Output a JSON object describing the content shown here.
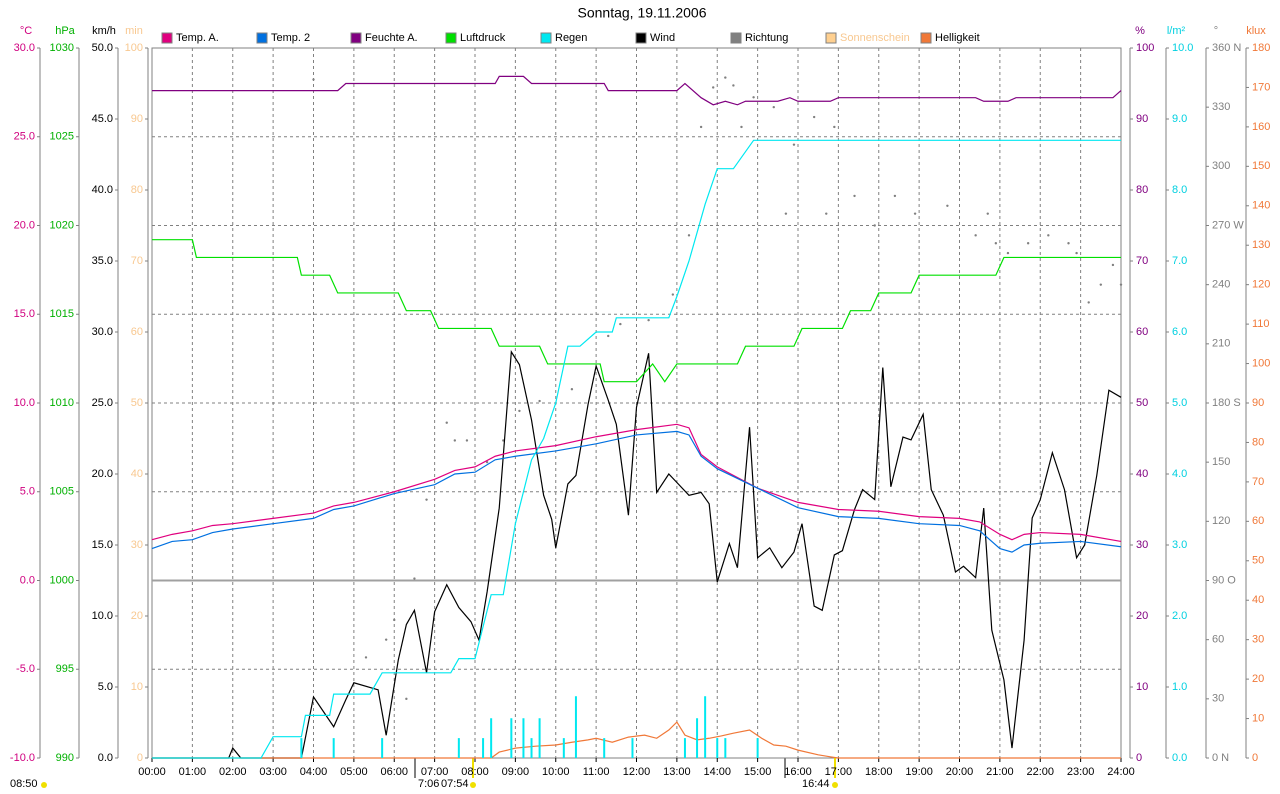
{
  "chart_data": {
    "type": "line",
    "title": "Sonntag, 19.11.2006",
    "xlim": [
      0,
      24
    ],
    "xticks": [
      {
        "value": 0,
        "label": "00:00"
      },
      {
        "value": 1,
        "label": "01:00"
      },
      {
        "value": 2,
        "label": "02:00"
      },
      {
        "value": 3,
        "label": "03:00"
      },
      {
        "value": 4,
        "label": "04:00"
      },
      {
        "value": 5,
        "label": "05:00"
      },
      {
        "value": 6,
        "label": "06:00"
      },
      {
        "value": 7,
        "label": "07:00"
      },
      {
        "value": 8,
        "label": "08:00"
      },
      {
        "value": 9,
        "label": "09:00"
      },
      {
        "value": 10,
        "label": "10:00"
      },
      {
        "value": 11,
        "label": "11:00"
      },
      {
        "value": 12,
        "label": "12:00"
      },
      {
        "value": 13,
        "label": "13:00"
      },
      {
        "value": 14,
        "label": "14:00"
      },
      {
        "value": 15,
        "label": "15:00"
      },
      {
        "value": 16,
        "label": "16:00"
      },
      {
        "value": 17,
        "label": "17:00"
      },
      {
        "value": 18,
        "label": "18:00"
      },
      {
        "value": 19,
        "label": "19:00"
      },
      {
        "value": 20,
        "label": "20:00"
      },
      {
        "value": 21,
        "label": "21:00"
      },
      {
        "value": 22,
        "label": "22:00"
      },
      {
        "value": 23,
        "label": "23:00"
      },
      {
        "value": 24,
        "label": "24:00"
      }
    ],
    "grid": true,
    "axes": [
      {
        "unit": "°C",
        "color": "#d0007f",
        "side": "left",
        "lim": [
          -10,
          30
        ],
        "ticks": [
          {
            "value": -10,
            "label": "-10.0"
          },
          {
            "value": -5,
            "label": "-5.0"
          },
          {
            "value": 0,
            "label": "0.0"
          },
          {
            "value": 5,
            "label": "5.0"
          },
          {
            "value": 10,
            "label": "10.0"
          },
          {
            "value": 15,
            "label": "15.0"
          },
          {
            "value": 20,
            "label": "20.0"
          },
          {
            "value": 25,
            "label": "25.0"
          },
          {
            "value": 30,
            "label": "30.0"
          }
        ]
      },
      {
        "unit": "hPa",
        "color": "#00b000",
        "side": "left",
        "lim": [
          990,
          1030
        ],
        "ticks": [
          990,
          995,
          1000,
          1005,
          1010,
          1015,
          1020,
          1025,
          1030
        ]
      },
      {
        "unit": "km/h",
        "color": "#000000",
        "side": "left",
        "lim": [
          0,
          50
        ],
        "ticks": [
          {
            "value": 0,
            "label": "0.0"
          },
          {
            "value": 5,
            "label": "5.0"
          },
          {
            "value": 10,
            "label": "10.0"
          },
          {
            "value": 15,
            "label": "15.0"
          },
          {
            "value": 20,
            "label": "20.0"
          },
          {
            "value": 25,
            "label": "25.0"
          },
          {
            "value": 30,
            "label": "30.0"
          },
          {
            "value": 35,
            "label": "35.0"
          },
          {
            "value": 40,
            "label": "40.0"
          },
          {
            "value": 45,
            "label": "45.0"
          },
          {
            "value": 50,
            "label": "50.0"
          }
        ]
      },
      {
        "unit": "min",
        "color": "#f8c890",
        "side": "left",
        "lim": [
          0,
          100
        ],
        "ticks": [
          0,
          10,
          20,
          30,
          40,
          50,
          60,
          70,
          80,
          90,
          100
        ]
      },
      {
        "unit": "%",
        "color": "#800080",
        "side": "right",
        "lim": [
          0,
          100
        ],
        "ticks": [
          0,
          10,
          20,
          30,
          40,
          50,
          60,
          70,
          80,
          90,
          100
        ]
      },
      {
        "unit": "l/m²",
        "color": "#00d0e0",
        "side": "right",
        "lim": [
          0,
          10
        ],
        "ticks": [
          {
            "value": 0,
            "label": "0.0"
          },
          {
            "value": 1,
            "label": "1.0"
          },
          {
            "value": 2,
            "label": "2.0"
          },
          {
            "value": 3,
            "label": "3.0"
          },
          {
            "value": 4,
            "label": "4.0"
          },
          {
            "value": 5,
            "label": "5.0"
          },
          {
            "value": 6,
            "label": "6.0"
          },
          {
            "value": 7,
            "label": "7.0"
          },
          {
            "value": 8,
            "label": "8.0"
          },
          {
            "value": 9,
            "label": "9.0"
          },
          {
            "value": 10,
            "label": "10.0"
          }
        ]
      },
      {
        "unit": "°",
        "color": "#808080",
        "side": "right",
        "lim": [
          0,
          360
        ],
        "ticks": [
          {
            "value": 0,
            "label": "0 N"
          },
          30,
          60,
          {
            "value": 90,
            "label": "90 O"
          },
          120,
          150,
          {
            "value": 180,
            "label": "180 S"
          },
          210,
          240,
          {
            "value": 270,
            "label": "270 W"
          },
          300,
          330,
          {
            "value": 360,
            "label": "360 N"
          }
        ]
      },
      {
        "unit": "klux",
        "color": "#f07838",
        "side": "right",
        "lim": [
          0,
          180
        ],
        "ticks": [
          0,
          10,
          20,
          30,
          40,
          50,
          60,
          70,
          80,
          90,
          100,
          110,
          120,
          130,
          140,
          150,
          160,
          170,
          180
        ]
      }
    ],
    "series": [
      {
        "name": "Temp. A.",
        "color": "#e0007f",
        "axis": "°C",
        "style": "line",
        "x": [
          0,
          0.5,
          1,
          1.5,
          2,
          3,
          4,
          4.5,
          5,
          6,
          7,
          7.5,
          8,
          8.5,
          9,
          10,
          11,
          12,
          13,
          13.3,
          13.6,
          14,
          15,
          16,
          17,
          18,
          19,
          20,
          20.5,
          21,
          21.3,
          21.6,
          22,
          23,
          24
        ],
        "values": [
          2.3,
          2.6,
          2.8,
          3.1,
          3.2,
          3.5,
          3.8,
          4.2,
          4.4,
          5.0,
          5.7,
          6.2,
          6.4,
          7.0,
          7.3,
          7.6,
          8.1,
          8.5,
          8.8,
          8.6,
          7.1,
          6.4,
          5.2,
          4.4,
          4.0,
          3.9,
          3.6,
          3.5,
          3.3,
          2.6,
          2.3,
          2.6,
          2.7,
          2.6,
          2.2
        ]
      },
      {
        "name": "Temp. 2",
        "color": "#0070e0",
        "axis": "°C",
        "style": "line",
        "x": [
          0,
          0.5,
          1,
          1.5,
          2,
          3,
          4,
          4.5,
          5,
          6,
          7,
          7.5,
          8,
          8.5,
          9,
          10,
          11,
          12,
          13,
          13.3,
          13.6,
          14,
          15,
          16,
          17,
          18,
          19,
          20,
          20.5,
          21,
          21.3,
          21.6,
          22,
          23,
          24
        ],
        "values": [
          1.8,
          2.2,
          2.3,
          2.7,
          2.9,
          3.2,
          3.5,
          4.0,
          4.2,
          4.9,
          5.4,
          6.0,
          6.1,
          6.8,
          7.0,
          7.3,
          7.7,
          8.2,
          8.4,
          8.2,
          7.0,
          6.3,
          5.2,
          4.1,
          3.6,
          3.5,
          3.2,
          3.1,
          2.8,
          1.8,
          1.6,
          2.0,
          2.1,
          2.2,
          1.9
        ]
      },
      {
        "name": "Feuchte A.",
        "color": "#800080",
        "axis": "%",
        "style": "line",
        "x": [
          0,
          4.6,
          4.8,
          8.5,
          8.6,
          9.2,
          9.4,
          11.2,
          11.3,
          13,
          13.2,
          13.6,
          13.9,
          14.2,
          14.5,
          14.7,
          15.5,
          15.8,
          16,
          16.8,
          17,
          20.4,
          20.6,
          21.2,
          21.4,
          23.8,
          24
        ],
        "values": [
          94,
          94,
          95,
          95,
          96,
          96,
          95,
          95,
          94,
          94,
          95,
          93,
          92,
          92.5,
          92,
          92.5,
          92.5,
          93,
          92.5,
          92.5,
          93,
          93,
          92.5,
          92.5,
          93,
          93,
          94
        ]
      },
      {
        "name": "Luftdruck",
        "color": "#00e000",
        "axis": "hPa",
        "style": "line",
        "x": [
          0,
          1.0,
          1.1,
          3.6,
          3.7,
          4.4,
          4.6,
          6.1,
          6.3,
          6.9,
          7.1,
          8.4,
          8.6,
          9.6,
          9.8,
          11.1,
          11.2,
          12.0,
          12.4,
          12.7,
          13.0,
          14.5,
          14.7,
          15.9,
          16.1,
          17.1,
          17.3,
          17.8,
          18.0,
          18.8,
          19.0,
          20.9,
          21.1,
          24
        ],
        "values": [
          1019.2,
          1019.2,
          1018.2,
          1018.2,
          1017.2,
          1017.2,
          1016.2,
          1016.2,
          1015.2,
          1015.2,
          1014.2,
          1014.2,
          1013.2,
          1013.2,
          1012.2,
          1012.2,
          1011.2,
          1011.2,
          1012.2,
          1011.2,
          1012.2,
          1012.2,
          1013.2,
          1013.2,
          1014.2,
          1014.2,
          1015.2,
          1015.2,
          1016.2,
          1016.2,
          1017.2,
          1017.2,
          1018.2,
          1018.2
        ]
      },
      {
        "name": "Regen",
        "color": "#00e8f0",
        "axis": "l/m²",
        "style": "line",
        "x": [
          0,
          2.7,
          3.0,
          3.7,
          3.8,
          4.4,
          4.5,
          5.4,
          5.7,
          7.4,
          7.6,
          8.0,
          8.4,
          8.7,
          9.0,
          9.4,
          9.7,
          10.0,
          10.3,
          10.6,
          11.0,
          11.4,
          11.5,
          12.8,
          13.0,
          13.3,
          13.7,
          14.0,
          14.4,
          14.9,
          24
        ],
        "values": [
          0,
          0,
          0.3,
          0.3,
          0.6,
          0.6,
          0.9,
          0.9,
          1.2,
          1.2,
          1.4,
          1.4,
          2.3,
          2.3,
          3.3,
          4.2,
          4.5,
          5.0,
          5.8,
          5.8,
          6.0,
          6.0,
          6.2,
          6.2,
          6.5,
          7.0,
          7.8,
          8.3,
          8.3,
          8.7,
          8.7
        ],
        "bar_x": [
          3.7,
          4.5,
          5.7,
          7.6,
          8.2,
          8.4,
          8.9,
          9.2,
          9.4,
          9.6,
          10.2,
          10.5,
          11.2,
          11.9,
          13.2,
          13.5,
          13.7,
          14.0,
          14.2,
          15.0
        ],
        "bar_values": [
          0.28,
          0.28,
          0.28,
          0.28,
          0.28,
          0.56,
          0.56,
          0.56,
          0.28,
          0.56,
          0.28,
          0.87,
          0.28,
          0.28,
          0.28,
          0.56,
          0.87,
          0.28,
          0.28,
          0.28
        ]
      },
      {
        "name": "Wind",
        "color": "#000000",
        "axis": "km/h",
        "style": "line",
        "x": [
          0,
          1.9,
          2.0,
          2.2,
          3.7,
          4.0,
          4.5,
          4.8,
          5.0,
          5.6,
          5.8,
          6.1,
          6.3,
          6.5,
          6.8,
          7.0,
          7.3,
          7.6,
          7.9,
          8.1,
          8.3,
          8.6,
          8.9,
          9.1,
          9.4,
          9.7,
          9.9,
          10.0,
          10.3,
          10.5,
          10.8,
          11.0,
          11.3,
          11.5,
          11.8,
          12.0,
          12.3,
          12.5,
          12.8,
          13.0,
          13.3,
          13.6,
          13.8,
          14.0,
          14.3,
          14.5,
          14.8,
          15.0,
          15.3,
          15.6,
          15.9,
          16.1,
          16.4,
          16.6,
          16.9,
          17.1,
          17.4,
          17.6,
          17.9,
          18.1,
          18.3,
          18.6,
          18.8,
          19.1,
          19.3,
          19.6,
          19.9,
          20.1,
          20.4,
          20.6,
          20.8,
          21.1,
          21.3,
          21.6,
          21.8,
          22.0,
          22.3,
          22.6,
          22.9,
          23.1,
          23.4,
          23.7,
          24.0
        ],
        "values": [
          0,
          0,
          0.7,
          0,
          0,
          4.3,
          2.2,
          4.1,
          5.3,
          4.8,
          1.6,
          6.9,
          9.4,
          10.4,
          6.0,
          10.3,
          12.2,
          10.6,
          9.6,
          8.3,
          11.7,
          17.6,
          28.6,
          27.7,
          23.8,
          18.5,
          16.8,
          14.8,
          19.3,
          19.9,
          24.9,
          27.6,
          25.2,
          23.5,
          17.1,
          24.7,
          28.5,
          18.7,
          20.0,
          19.4,
          18.5,
          18.7,
          17.9,
          12.4,
          15.1,
          13.4,
          23.3,
          14.1,
          14.8,
          13.4,
          14.5,
          16.5,
          10.7,
          10.4,
          14.3,
          14.6,
          17.5,
          18.9,
          18.2,
          27.5,
          19.1,
          22.6,
          22.4,
          24.2,
          18.9,
          17.1,
          13.1,
          13.5,
          12.7,
          17.6,
          9.0,
          5.5,
          0.7,
          8.3,
          16.9,
          18.2,
          21.5,
          18.9,
          14.1,
          15.0,
          19.9,
          25.9,
          25.4
        ]
      },
      {
        "name": "Richtung",
        "color": "#808080",
        "axis": "°",
        "style": "dots",
        "x": [
          4.0,
          5.3,
          5.8,
          6.0,
          6.3,
          6.5,
          6.8,
          7.3,
          7.5,
          7.8,
          8.3,
          8.7,
          9.1,
          9.6,
          10.4,
          11.3,
          11.6,
          12.3,
          12.9,
          13.3,
          13.6,
          13.9,
          14.2,
          14.4,
          14.6,
          14.9,
          15.4,
          15.7,
          15.9,
          16.4,
          16.7,
          16.9,
          17.4,
          17.9,
          18.4,
          18.9,
          19.7,
          20.4,
          20.7,
          20.9,
          21.2,
          21.7,
          22.2,
          22.7,
          22.9,
          23.2,
          23.5,
          23.8,
          24.0
        ],
        "values": [
          344,
          51,
          60,
          70,
          30,
          91,
          131,
          170,
          161,
          161,
          150,
          161,
          176,
          181,
          187,
          214,
          220,
          222,
          235,
          265,
          320,
          340,
          345,
          341,
          320,
          335,
          330,
          276,
          311,
          325,
          276,
          320,
          285,
          270,
          285,
          276,
          280,
          265,
          276,
          261,
          256,
          261,
          265,
          261,
          256,
          231,
          240,
          250,
          240
        ]
      },
      {
        "name": "Sonnenschein",
        "color": "#ffd090",
        "axis": "min",
        "style": "line"
      },
      {
        "name": "Helligkeit",
        "color": "#f07838",
        "axis": "klux",
        "style": "line",
        "x": [
          0,
          8.4,
          8.6,
          9.0,
          9.5,
          10.0,
          10.4,
          10.8,
          11.0,
          11.4,
          11.8,
          12.2,
          12.5,
          12.8,
          13.0,
          13.2,
          13.5,
          13.8,
          14.1,
          14.4,
          14.8,
          15.1,
          15.4,
          15.7,
          16.0,
          16.5,
          16.8,
          17.0,
          24
        ],
        "values": [
          0,
          0,
          1.5,
          2.5,
          3,
          3.3,
          4,
          4.6,
          5,
          4,
          5.3,
          5.8,
          5,
          7.1,
          9.1,
          5.8,
          4.6,
          5,
          5.6,
          6.3,
          7.1,
          5,
          3.3,
          3,
          2,
          0.8,
          0.3,
          0,
          0
        ]
      }
    ]
  },
  "footer": {
    "time": "08:50",
    "dawn": "7:06",
    "sunrise": "07:54",
    "sunset": "16:44"
  }
}
